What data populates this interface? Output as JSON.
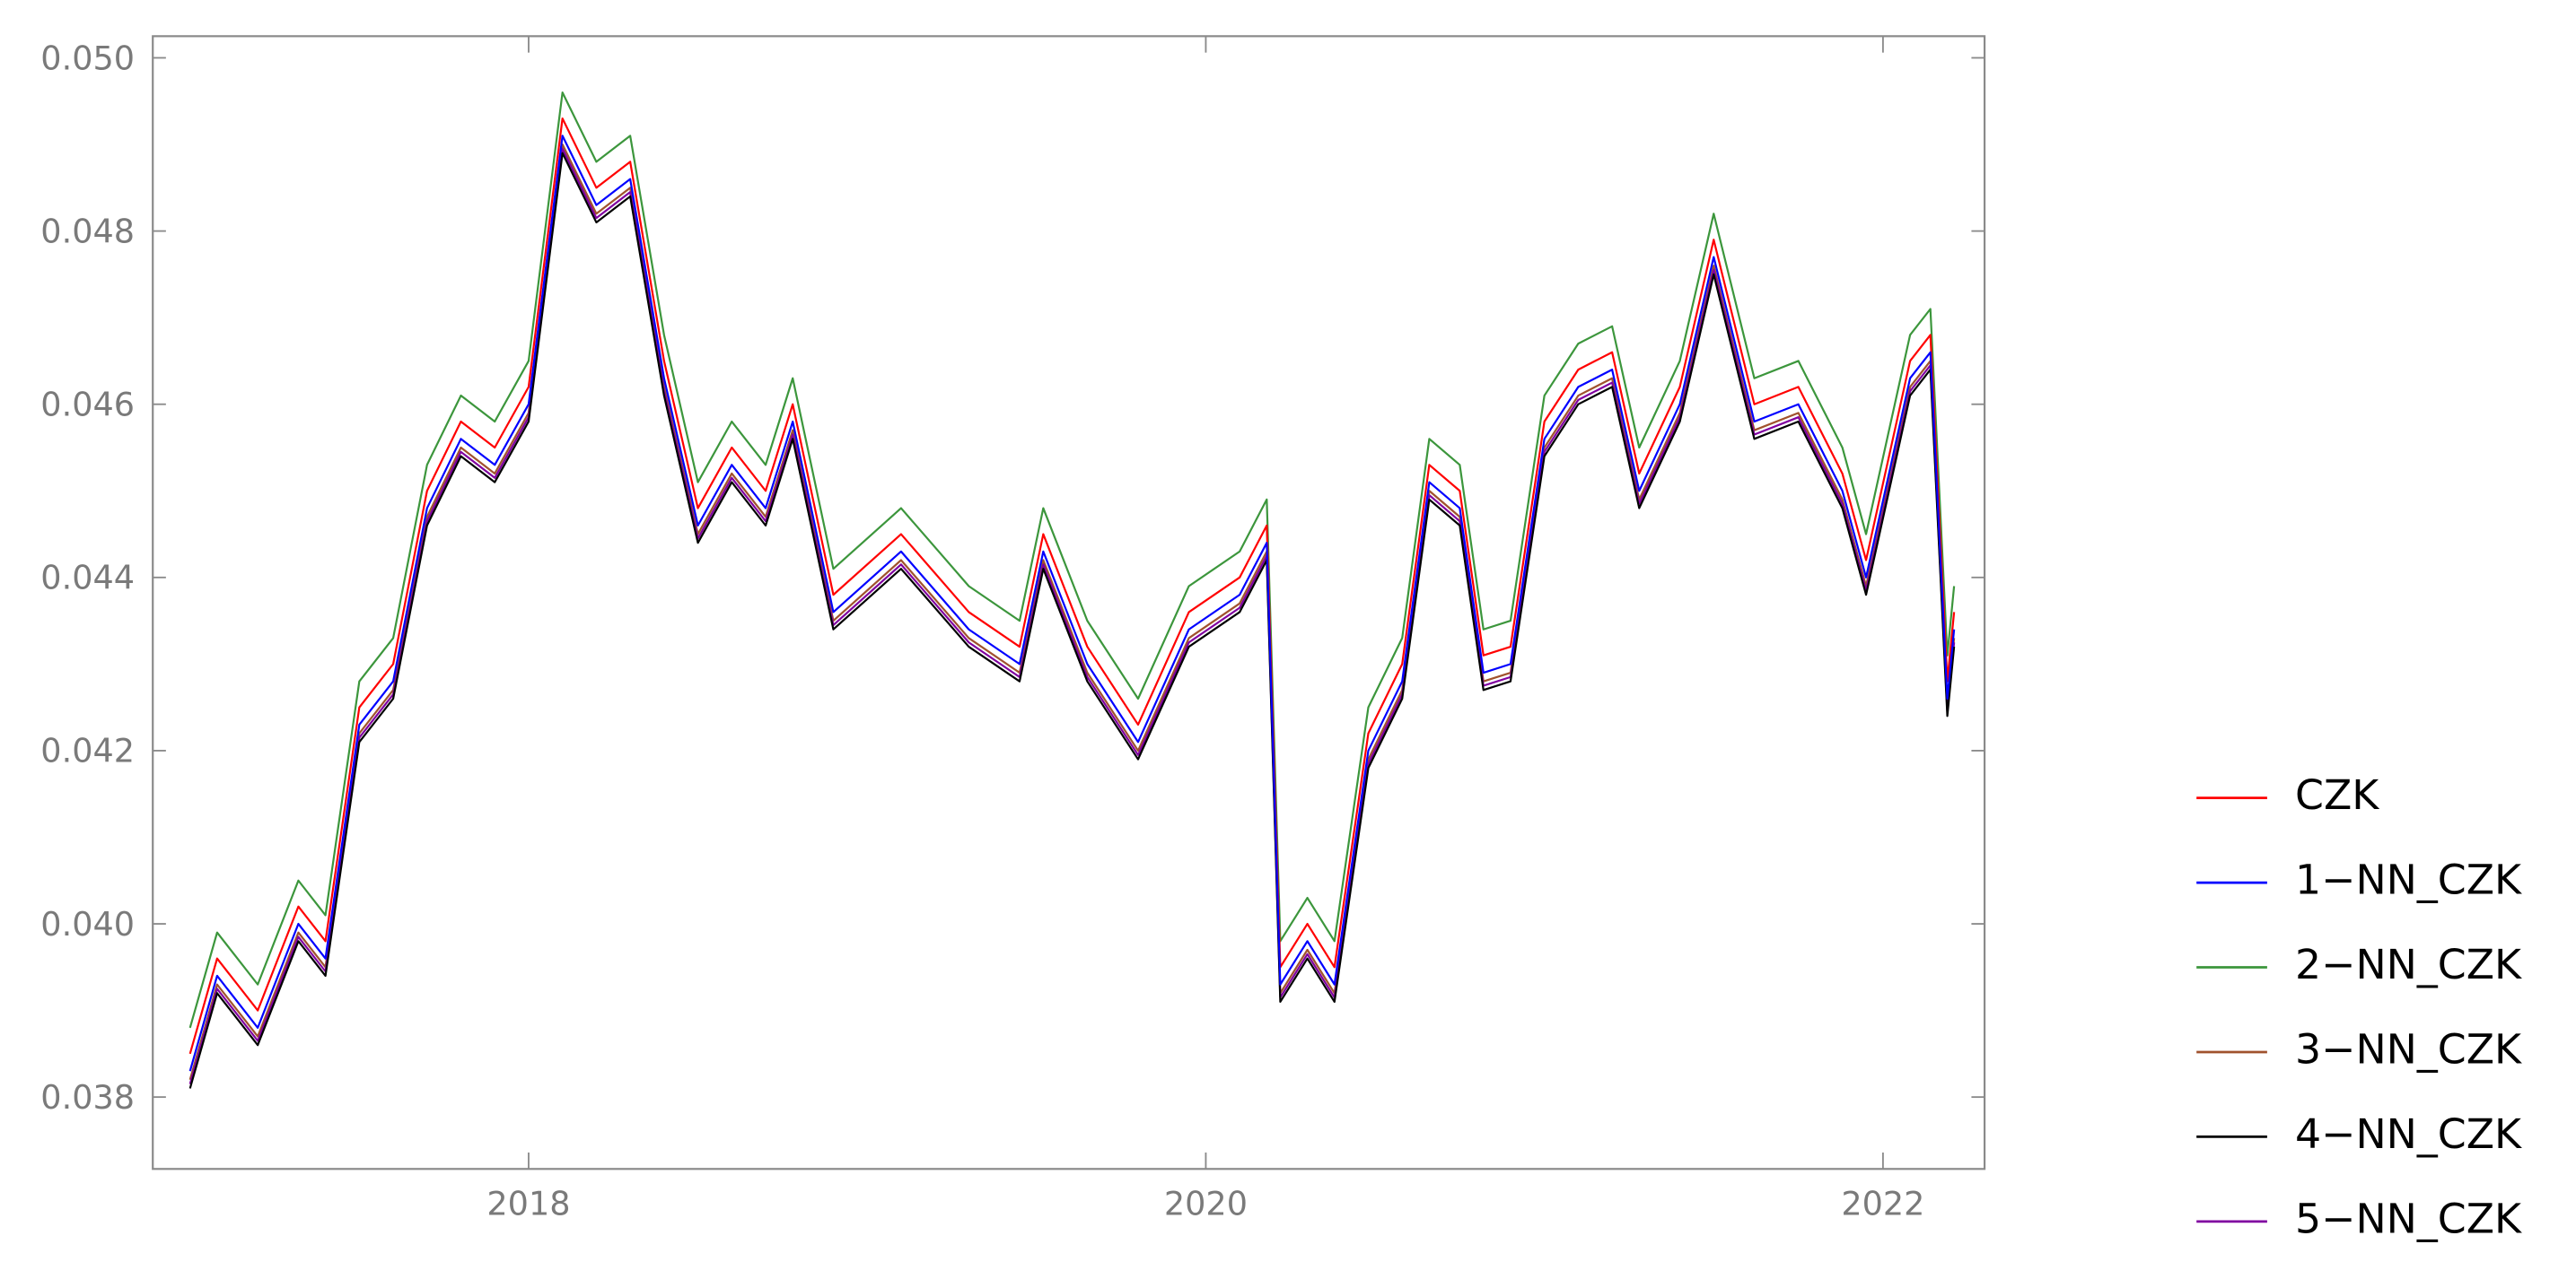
{
  "chart_data": {
    "type": "line",
    "x": [
      2017.0,
      2017.08,
      2017.2,
      2017.32,
      2017.4,
      2017.5,
      2017.6,
      2017.7,
      2017.8,
      2017.9,
      2018.0,
      2018.1,
      2018.2,
      2018.3,
      2018.4,
      2018.5,
      2018.6,
      2018.7,
      2018.78,
      2018.9,
      2019.1,
      2019.3,
      2019.45,
      2019.52,
      2019.65,
      2019.8,
      2019.95,
      2020.1,
      2020.18,
      2020.22,
      2020.3,
      2020.38,
      2020.48,
      2020.58,
      2020.66,
      2020.75,
      2020.82,
      2020.9,
      2021.0,
      2021.1,
      2021.2,
      2021.28,
      2021.4,
      2021.5,
      2021.62,
      2021.75,
      2021.88,
      2021.95,
      2022.08,
      2022.14,
      2022.19,
      2022.21
    ],
    "series": [
      {
        "name": "CZK",
        "color": "#ff0000",
        "values": [
          0.0385,
          0.0396,
          0.039,
          0.0402,
          0.0398,
          0.0425,
          0.043,
          0.045,
          0.0458,
          0.0455,
          0.0462,
          0.0493,
          0.0485,
          0.0488,
          0.0465,
          0.0448,
          0.0455,
          0.045,
          0.046,
          0.0438,
          0.0445,
          0.0436,
          0.0432,
          0.0445,
          0.0432,
          0.0423,
          0.0436,
          0.044,
          0.0446,
          0.0395,
          0.04,
          0.0395,
          0.0422,
          0.043,
          0.0453,
          0.045,
          0.0431,
          0.0432,
          0.0458,
          0.0464,
          0.0466,
          0.0452,
          0.0462,
          0.0479,
          0.046,
          0.0462,
          0.0452,
          0.0442,
          0.0465,
          0.0468,
          0.0428,
          0.0436
        ]
      },
      {
        "name": "1−NN_CZK",
        "color": "#0000ff",
        "values": [
          0.0383,
          0.0394,
          0.0388,
          0.04,
          0.0396,
          0.0423,
          0.0428,
          0.0448,
          0.0456,
          0.0453,
          0.046,
          0.0491,
          0.0483,
          0.0486,
          0.0463,
          0.0446,
          0.0453,
          0.0448,
          0.0458,
          0.0436,
          0.0443,
          0.0434,
          0.043,
          0.0443,
          0.043,
          0.0421,
          0.0434,
          0.0438,
          0.0444,
          0.0393,
          0.0398,
          0.0393,
          0.042,
          0.0428,
          0.0451,
          0.0448,
          0.0429,
          0.043,
          0.0456,
          0.0462,
          0.0464,
          0.045,
          0.046,
          0.0477,
          0.0458,
          0.046,
          0.045,
          0.044,
          0.0463,
          0.0466,
          0.0426,
          0.0434
        ]
      },
      {
        "name": "2−NN_CZK",
        "color": "#3c963c",
        "values": [
          0.0388,
          0.0399,
          0.0393,
          0.0405,
          0.0401,
          0.0428,
          0.0433,
          0.0453,
          0.0461,
          0.0458,
          0.0465,
          0.0496,
          0.0488,
          0.0491,
          0.0468,
          0.0451,
          0.0458,
          0.0453,
          0.0463,
          0.0441,
          0.0448,
          0.0439,
          0.0435,
          0.0448,
          0.0435,
          0.0426,
          0.0439,
          0.0443,
          0.0449,
          0.0398,
          0.0403,
          0.0398,
          0.0425,
          0.0433,
          0.0456,
          0.0453,
          0.0434,
          0.0435,
          0.0461,
          0.0467,
          0.0469,
          0.0455,
          0.0465,
          0.0482,
          0.0463,
          0.0465,
          0.0455,
          0.0445,
          0.0468,
          0.0471,
          0.0431,
          0.0439
        ]
      },
      {
        "name": "3−NN_CZK",
        "color": "#a0522d",
        "values": [
          0.0382,
          0.0393,
          0.0387,
          0.0399,
          0.0395,
          0.0422,
          0.0427,
          0.0447,
          0.0455,
          0.0452,
          0.0459,
          0.049,
          0.0482,
          0.0485,
          0.0462,
          0.0445,
          0.0452,
          0.0447,
          0.0457,
          0.0435,
          0.0442,
          0.0433,
          0.0429,
          0.0442,
          0.0429,
          0.042,
          0.0433,
          0.0437,
          0.0443,
          0.0392,
          0.0397,
          0.0392,
          0.0419,
          0.0427,
          0.045,
          0.0447,
          0.0428,
          0.0429,
          0.0455,
          0.0461,
          0.0463,
          0.0449,
          0.0459,
          0.0476,
          0.0457,
          0.0459,
          0.0449,
          0.0439,
          0.0462,
          0.0465,
          0.0425,
          0.0433
        ]
      },
      {
        "name": "4−NN_CZK",
        "color": "#000000",
        "values": [
          0.0381,
          0.0392,
          0.0386,
          0.0398,
          0.0394,
          0.0421,
          0.0426,
          0.0446,
          0.0454,
          0.0451,
          0.0458,
          0.0489,
          0.0481,
          0.0484,
          0.0461,
          0.0444,
          0.0451,
          0.0446,
          0.0456,
          0.0434,
          0.0441,
          0.0432,
          0.0428,
          0.0441,
          0.0428,
          0.0419,
          0.0432,
          0.0436,
          0.0442,
          0.0391,
          0.0396,
          0.0391,
          0.0418,
          0.0426,
          0.0449,
          0.0446,
          0.0427,
          0.0428,
          0.0454,
          0.046,
          0.0462,
          0.0448,
          0.0458,
          0.0475,
          0.0456,
          0.0458,
          0.0448,
          0.0438,
          0.0461,
          0.0464,
          0.0424,
          0.0432
        ]
      },
      {
        "name": "5−NN_CZK",
        "color": "#8000a0",
        "values": [
          0.03815,
          0.03925,
          0.03865,
          0.03985,
          0.03945,
          0.04215,
          0.04265,
          0.04465,
          0.04545,
          0.04515,
          0.04585,
          0.04895,
          0.04815,
          0.04845,
          0.04615,
          0.04445,
          0.04515,
          0.04465,
          0.04565,
          0.04345,
          0.04415,
          0.04325,
          0.04285,
          0.04415,
          0.04285,
          0.04195,
          0.04325,
          0.04365,
          0.04425,
          0.03915,
          0.03965,
          0.03915,
          0.04185,
          0.04265,
          0.04495,
          0.04465,
          0.04275,
          0.04285,
          0.04545,
          0.04605,
          0.04625,
          0.04485,
          0.04585,
          0.04755,
          0.04565,
          0.04585,
          0.04485,
          0.04385,
          0.04615,
          0.04645,
          0.04245,
          0.04325
        ]
      }
    ],
    "xlim": [
      2016.89,
      2022.3
    ],
    "xticks": [
      2018,
      2020,
      2022
    ],
    "ylim": [
      0.03717,
      0.05025
    ],
    "yticks": [
      0.038,
      {
        "value": 0.04,
        "label": "0.040"
      },
      0.042,
      0.044,
      0.046,
      0.048,
      {
        "value": 0.05,
        "label": "0.050"
      }
    ],
    "legend": "right"
  }
}
